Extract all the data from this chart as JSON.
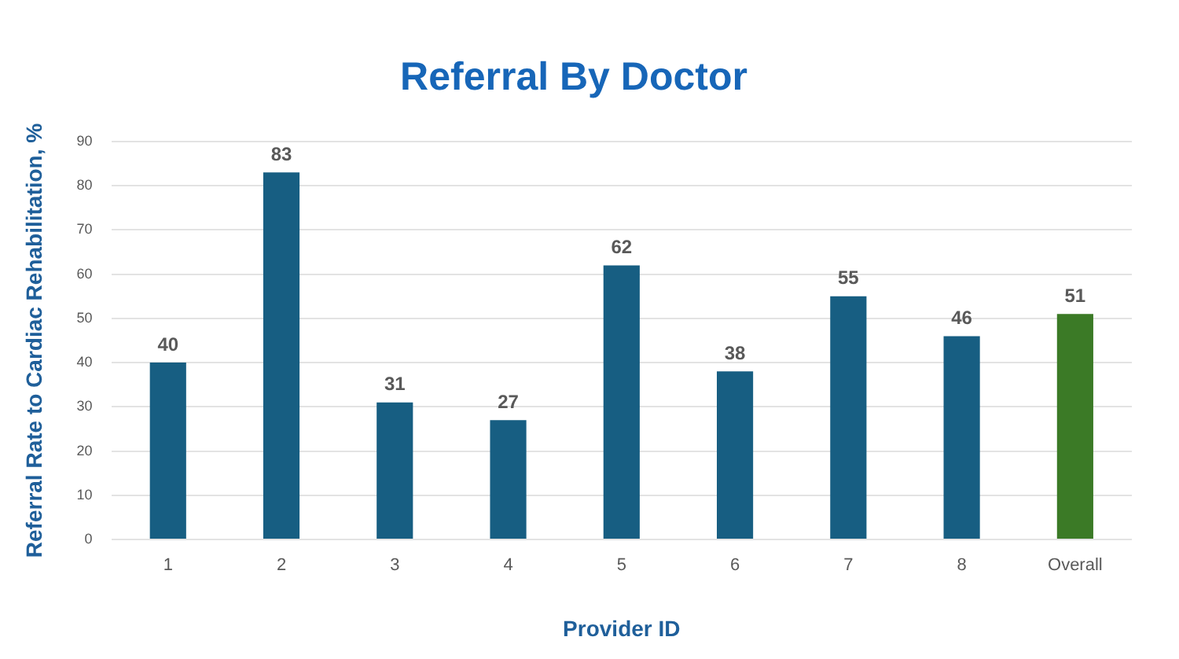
{
  "chart_data": {
    "type": "bar",
    "title": "Referral By Doctor",
    "xlabel": "Provider ID",
    "ylabel": "Referral Rate to Cardiac Rehabilitation, %",
    "categories": [
      "1",
      "2",
      "3",
      "4",
      "5",
      "6",
      "7",
      "8",
      "Overall"
    ],
    "values": [
      40,
      83,
      31,
      27,
      62,
      38,
      55,
      46,
      51
    ],
    "colors": [
      "#175e82",
      "#175e82",
      "#175e82",
      "#175e82",
      "#175e82",
      "#175e82",
      "#175e82",
      "#175e82",
      "#3b7a26"
    ],
    "ylim": [
      0,
      90
    ],
    "yticks": [
      0,
      10,
      20,
      30,
      40,
      50,
      60,
      70,
      80,
      90
    ],
    "grid": "y",
    "data_labels": true
  }
}
